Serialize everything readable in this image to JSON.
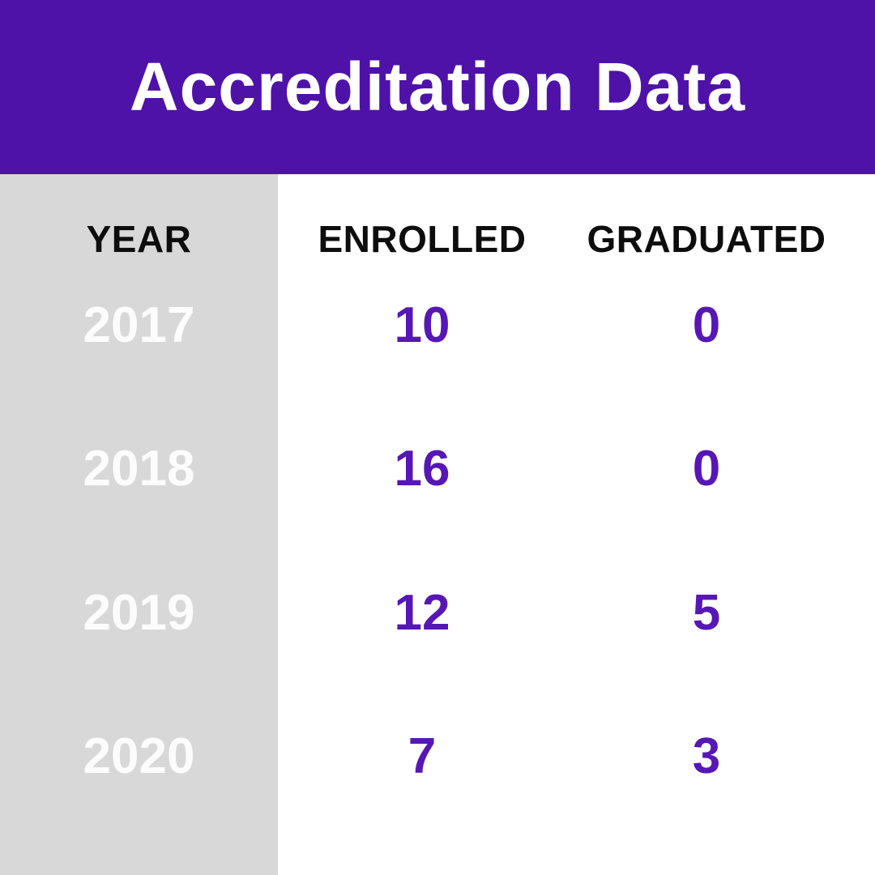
{
  "chart_data": {
    "type": "table",
    "title": "Accreditation Data",
    "columns": [
      "YEAR",
      "ENROLLED",
      "GRADUATED"
    ],
    "rows": [
      [
        "2017",
        "10",
        "0"
      ],
      [
        "2018",
        "16",
        "0"
      ],
      [
        "2019",
        "12",
        "5"
      ],
      [
        "2020",
        "7",
        "3"
      ]
    ]
  },
  "colors": {
    "banner_purple": "#4E12A8",
    "value_purple": "#5617B5",
    "year_column_gray": "#D8D8D8",
    "header_black": "#0D0D0D",
    "year_white": "#FCFCFC",
    "title_white": "#FFFFFF",
    "background_white": "#FFFFFF"
  }
}
